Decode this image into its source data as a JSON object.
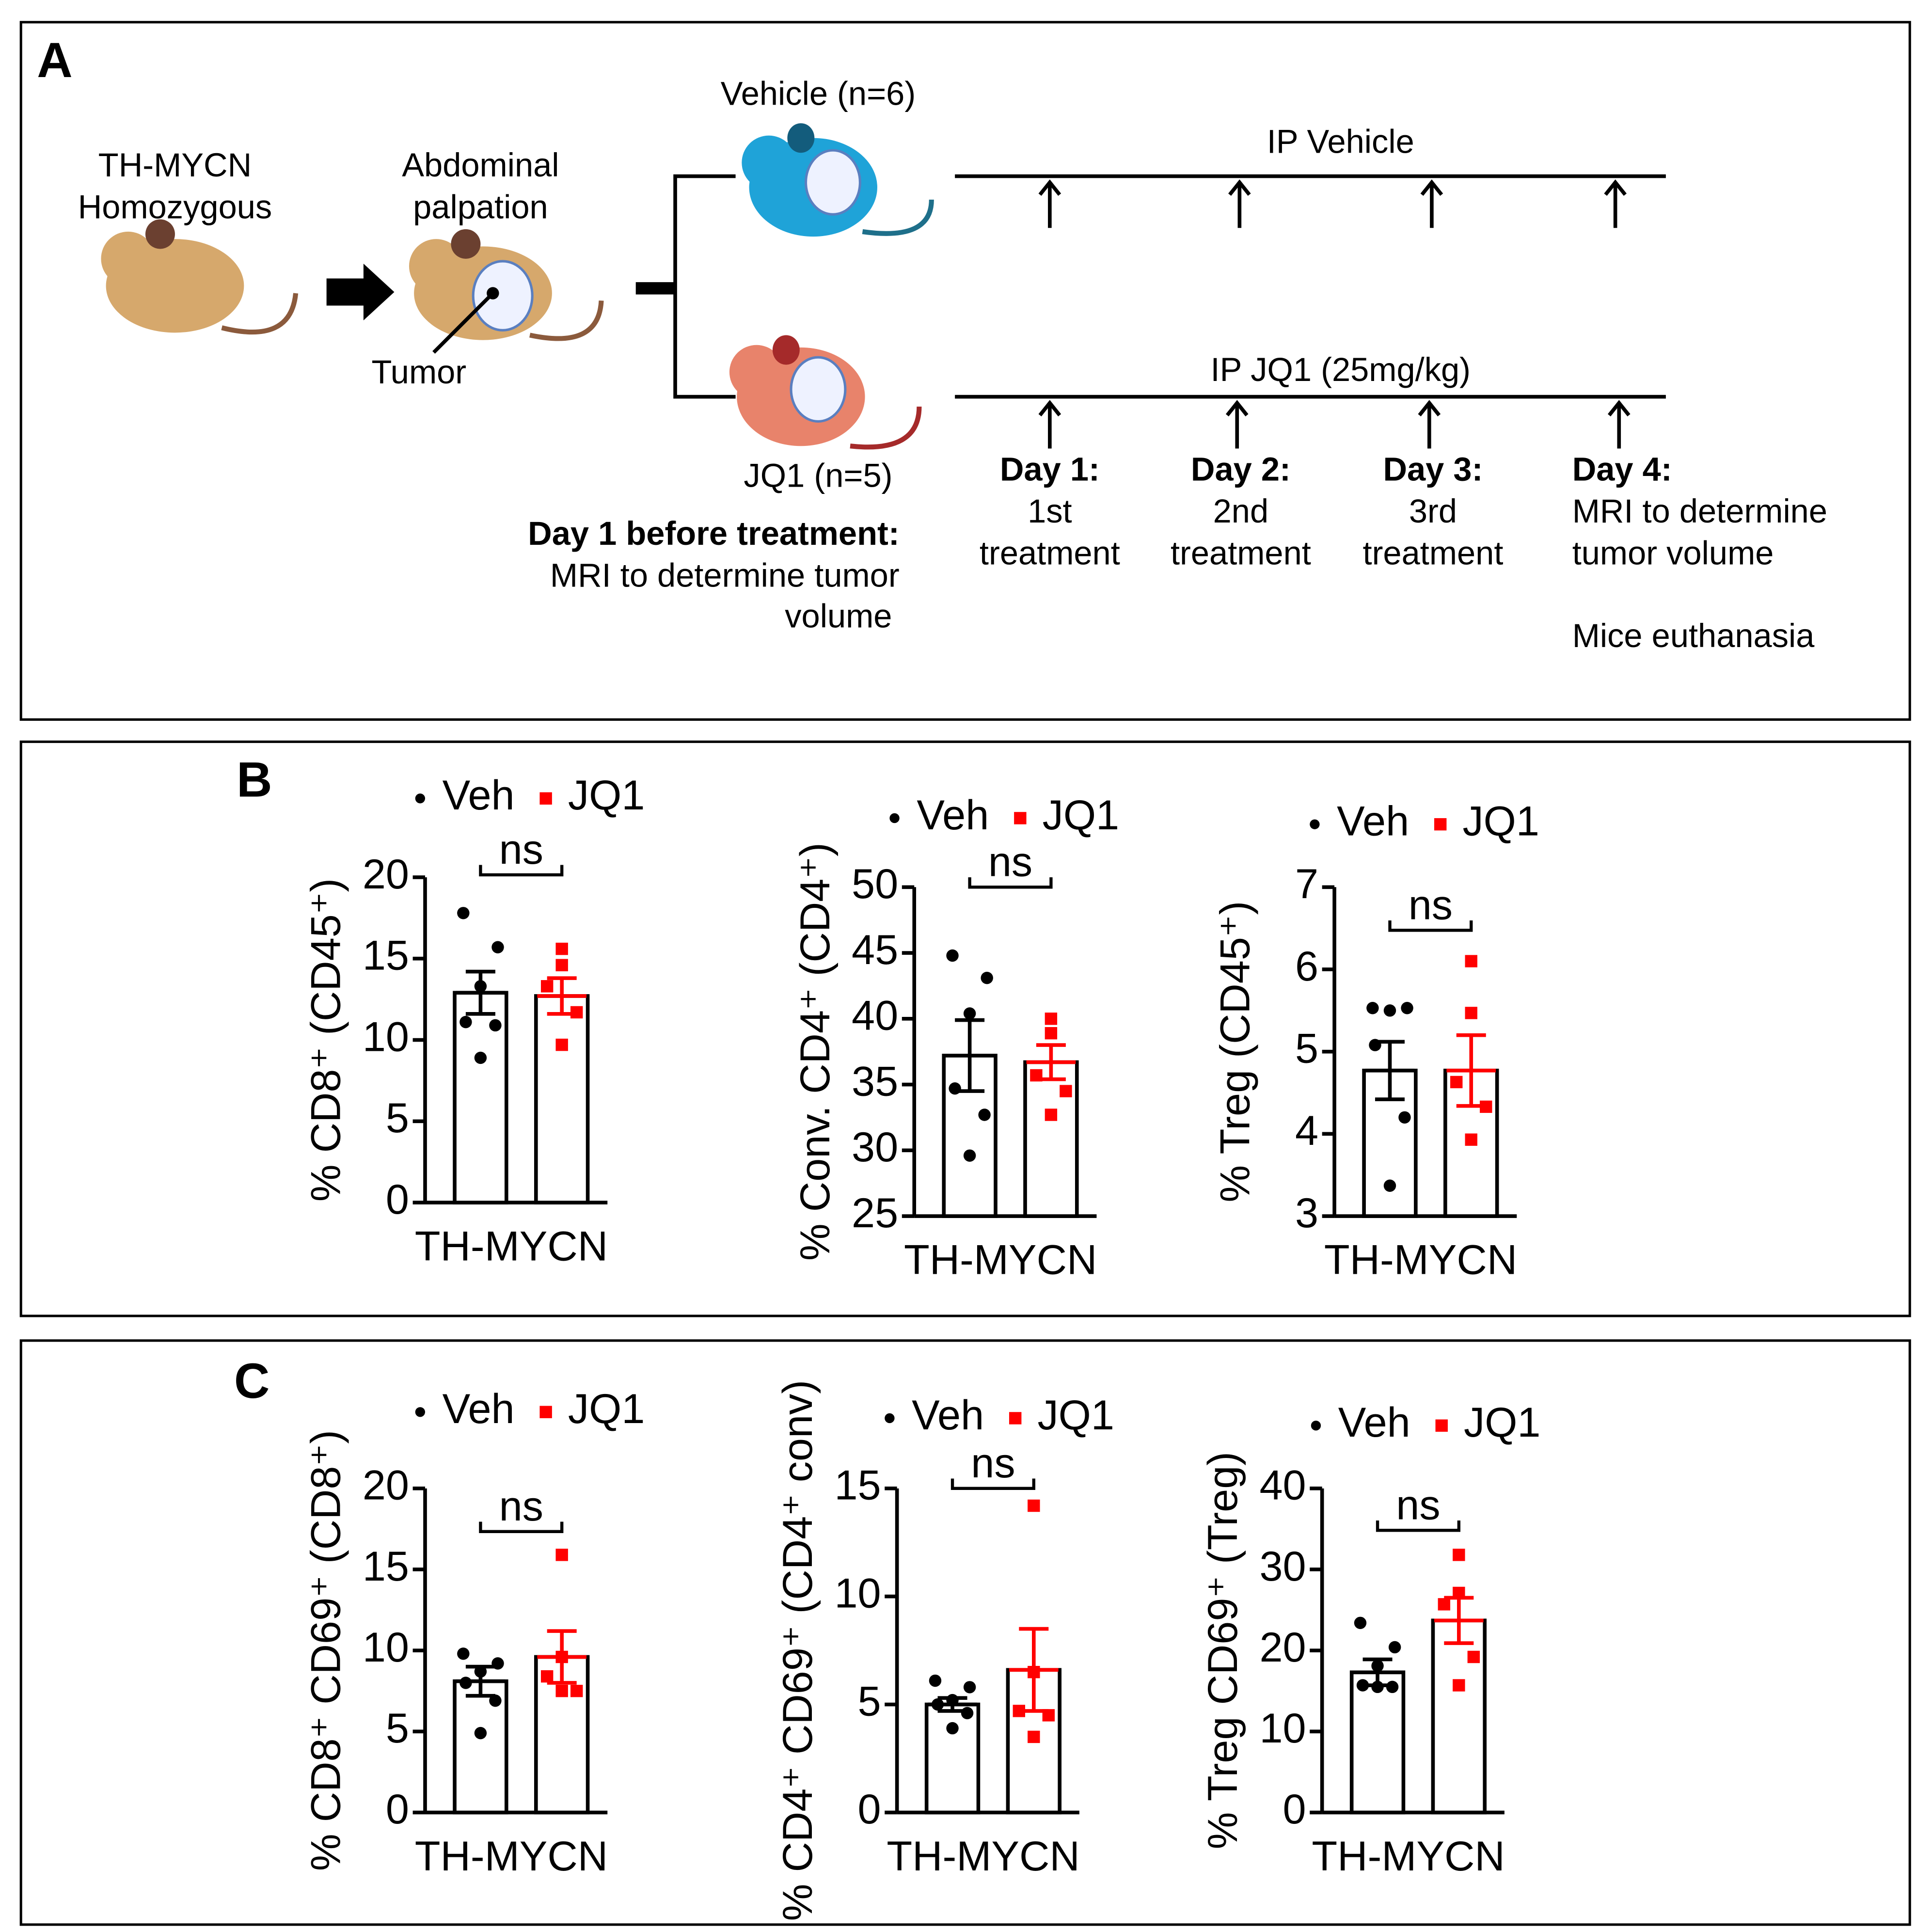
{
  "panel_a": {
    "label": "A",
    "source_label": [
      "TH-MYCN",
      "Homozygous"
    ],
    "palpation_label": [
      "Abdominal",
      "palpation"
    ],
    "tumor_label": "Tumor",
    "vehicle_group": "Vehicle (n=6)",
    "jq1_group": "JQ1 (n=5)",
    "vehicle_line": "IP Vehicle",
    "jq1_line": "IP JQ1 (25mg/kg)",
    "pre_title": "Day 1 before treatment:",
    "pre_text": [
      "MRI to determine tumor",
      "volume"
    ],
    "days": [
      {
        "title": "Day 1:",
        "text": [
          "1st",
          "treatment"
        ]
      },
      {
        "title": "Day 2:",
        "text": [
          "2nd",
          "treatment"
        ]
      },
      {
        "title": "Day 3:",
        "text": [
          "3rd",
          "treatment"
        ]
      },
      {
        "title": "Day 4:",
        "text": [
          "MRI to determine",
          "tumor volume"
        ]
      }
    ],
    "final_text": "Mice euthanasia"
  },
  "panel_b_label": "B",
  "panel_c_label": "C",
  "chart_data": [
    {
      "type": "bar",
      "ylabel": "% CD8⁺ (CD45⁺)",
      "xlabel": "TH-MYCN",
      "annotation": "ns",
      "legend": "top",
      "ylim": [
        0,
        20
      ],
      "yticks": [
        0,
        5,
        10,
        15,
        20
      ],
      "series": [
        {
          "name": "Veh",
          "color": "#000000",
          "values": [
            12.9
          ],
          "errors": [
            1.3
          ],
          "points": [
            17.8,
            15.7,
            13.3,
            11.1,
            10.9,
            8.9
          ]
        },
        {
          "name": "JQ1",
          "color": "#ff0000",
          "values": [
            12.7
          ],
          "errors": [
            1.1
          ],
          "points": [
            15.6,
            14.6,
            13.3,
            11.7,
            9.7
          ]
        }
      ]
    },
    {
      "type": "bar",
      "ylabel": "% Conv. CD4⁺ (CD4⁺)",
      "xlabel": "TH-MYCN",
      "annotation": "ns",
      "legend": "top",
      "ylim": [
        25,
        50
      ],
      "yticks": [
        25,
        30,
        35,
        40,
        45,
        50
      ],
      "series": [
        {
          "name": "Veh",
          "color": "#000000",
          "values": [
            37.2
          ],
          "errors": [
            2.7
          ],
          "points": [
            44.8,
            43.1,
            40.4,
            34.7,
            32.7,
            29.6
          ]
        },
        {
          "name": "JQ1",
          "color": "#ff0000",
          "values": [
            36.7
          ],
          "errors": [
            1.3
          ],
          "points": [
            40.0,
            38.9,
            35.7,
            34.5,
            32.7
          ]
        }
      ]
    },
    {
      "type": "bar",
      "ylabel": "% Treg (CD45⁺)",
      "xlabel": "TH-MYCN",
      "annotation": "ns",
      "legend": "top",
      "ylim": [
        3,
        7
      ],
      "yticks": [
        3,
        4,
        5,
        6,
        7
      ],
      "series": [
        {
          "name": "Veh",
          "color": "#000000",
          "values": [
            4.77
          ],
          "errors": [
            0.35
          ],
          "points": [
            5.53,
            5.53,
            5.5,
            5.08,
            4.2,
            3.37
          ]
        },
        {
          "name": "JQ1",
          "color": "#ff0000",
          "values": [
            4.77
          ],
          "errors": [
            0.43
          ],
          "points": [
            6.1,
            5.47,
            4.63,
            4.33,
            3.93
          ]
        }
      ]
    },
    {
      "type": "bar",
      "ylabel": "% CD8⁺ CD69⁺ (CD8⁺)",
      "xlabel": "TH-MYCN",
      "annotation": "ns",
      "legend": "top",
      "ylim": [
        0,
        20
      ],
      "yticks": [
        0,
        5,
        10,
        15,
        20
      ],
      "series": [
        {
          "name": "Veh",
          "color": "#000000",
          "values": [
            8.1
          ],
          "errors": [
            0.9
          ],
          "points": [
            9.8,
            9.2,
            8.7,
            8.0,
            6.9,
            4.9
          ]
        },
        {
          "name": "JQ1",
          "color": "#ff0000",
          "values": [
            9.6
          ],
          "errors": [
            1.6
          ],
          "points": [
            15.9,
            9.6,
            8.4,
            7.5,
            7.5
          ]
        }
      ]
    },
    {
      "type": "bar",
      "ylabel": "% CD4⁺ CD69⁺ (CD4⁺ conv)",
      "xlabel": "TH-MYCN",
      "annotation": "ns",
      "legend": "top",
      "ylim": [
        0,
        15
      ],
      "yticks": [
        0,
        5,
        10,
        15
      ],
      "series": [
        {
          "name": "Veh",
          "color": "#000000",
          "values": [
            5.0
          ],
          "errors": [
            0.3
          ],
          "points": [
            6.1,
            5.8,
            5.2,
            5.0,
            4.6,
            3.9
          ]
        },
        {
          "name": "JQ1",
          "color": "#ff0000",
          "values": [
            6.6
          ],
          "errors": [
            1.9
          ],
          "points": [
            14.2,
            6.5,
            4.7,
            4.5,
            3.5
          ]
        }
      ]
    },
    {
      "type": "bar",
      "ylabel": "% Treg CD69⁺ (Treg)",
      "xlabel": "TH-MYCN",
      "annotation": "ns",
      "legend": "top",
      "ylim": [
        0,
        40
      ],
      "yticks": [
        0,
        10,
        20,
        30,
        40
      ],
      "series": [
        {
          "name": "Veh",
          "color": "#000000",
          "values": [
            17.3
          ],
          "errors": [
            1.6
          ],
          "points": [
            23.4,
            20.4,
            18.1,
            15.7,
            15.5,
            15.5
          ]
        },
        {
          "name": "JQ1",
          "color": "#ff0000",
          "values": [
            23.7
          ],
          "errors": [
            2.8
          ],
          "points": [
            31.8,
            27.1,
            25.7,
            19.2,
            15.7
          ]
        }
      ]
    }
  ]
}
